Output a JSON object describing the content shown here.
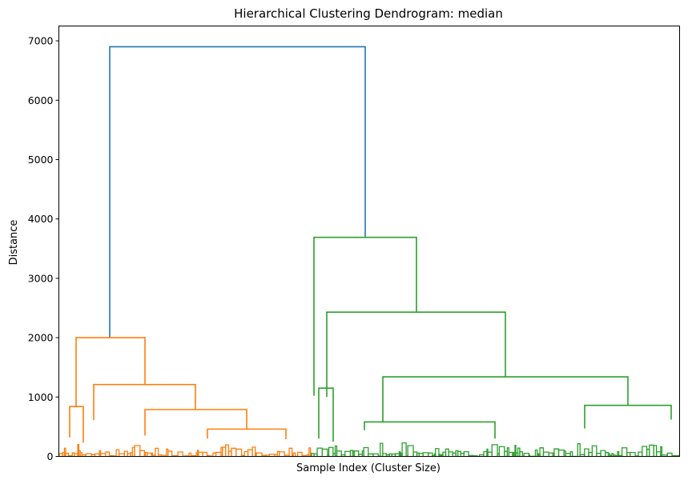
{
  "chart_data": {
    "type": "dendrogram",
    "title": "Hierarchical Clustering Dendrogram: median",
    "xlabel": "Sample Index (Cluster Size)",
    "ylabel": "Distance",
    "ylim": [
      0,
      7250
    ],
    "yticks": [
      0,
      1000,
      2000,
      3000,
      4000,
      5000,
      6000,
      7000
    ],
    "x_ticks_shown": false,
    "grid": false,
    "colors": {
      "root": "#1f77b4",
      "cluster_1": "#ff7f0e",
      "cluster_2": "#2ca02c"
    },
    "links": [
      {
        "cluster": "root",
        "height": 6900,
        "left_child_height": 2000,
        "right_child_height": 3690
      },
      {
        "cluster": "cluster_1",
        "height": 2000,
        "left_child_height": 840,
        "right_child_height": 1210
      },
      {
        "cluster": "cluster_1",
        "height": 1210,
        "left_child_height": 610,
        "right_child_height": 790
      },
      {
        "cluster": "cluster_1",
        "height": 790,
        "left_child_height": 350,
        "right_child_height": 460
      },
      {
        "cluster": "cluster_1",
        "height": 840,
        "left_child_height": 320,
        "right_child_height": 230
      },
      {
        "cluster": "cluster_1",
        "height": 460,
        "left_child_height": 300,
        "right_child_height": 290
      },
      {
        "cluster": "cluster_2",
        "height": 3690,
        "left_child_height": 1020,
        "right_child_height": 2430
      },
      {
        "cluster": "cluster_2",
        "height": 2430,
        "left_child_height": 1000,
        "right_child_height": 1340
      },
      {
        "cluster": "cluster_2",
        "height": 1340,
        "left_child_height": 580,
        "right_child_height": 860
      },
      {
        "cluster": "cluster_2",
        "height": 860,
        "left_child_height": 470,
        "right_child_height": 620
      },
      {
        "cluster": "cluster_2",
        "height": 580,
        "left_child_height": 440,
        "right_child_height": 300
      },
      {
        "cluster": "cluster_2",
        "height": 1150,
        "left_child_height": 300,
        "right_child_height": 250
      }
    ]
  }
}
